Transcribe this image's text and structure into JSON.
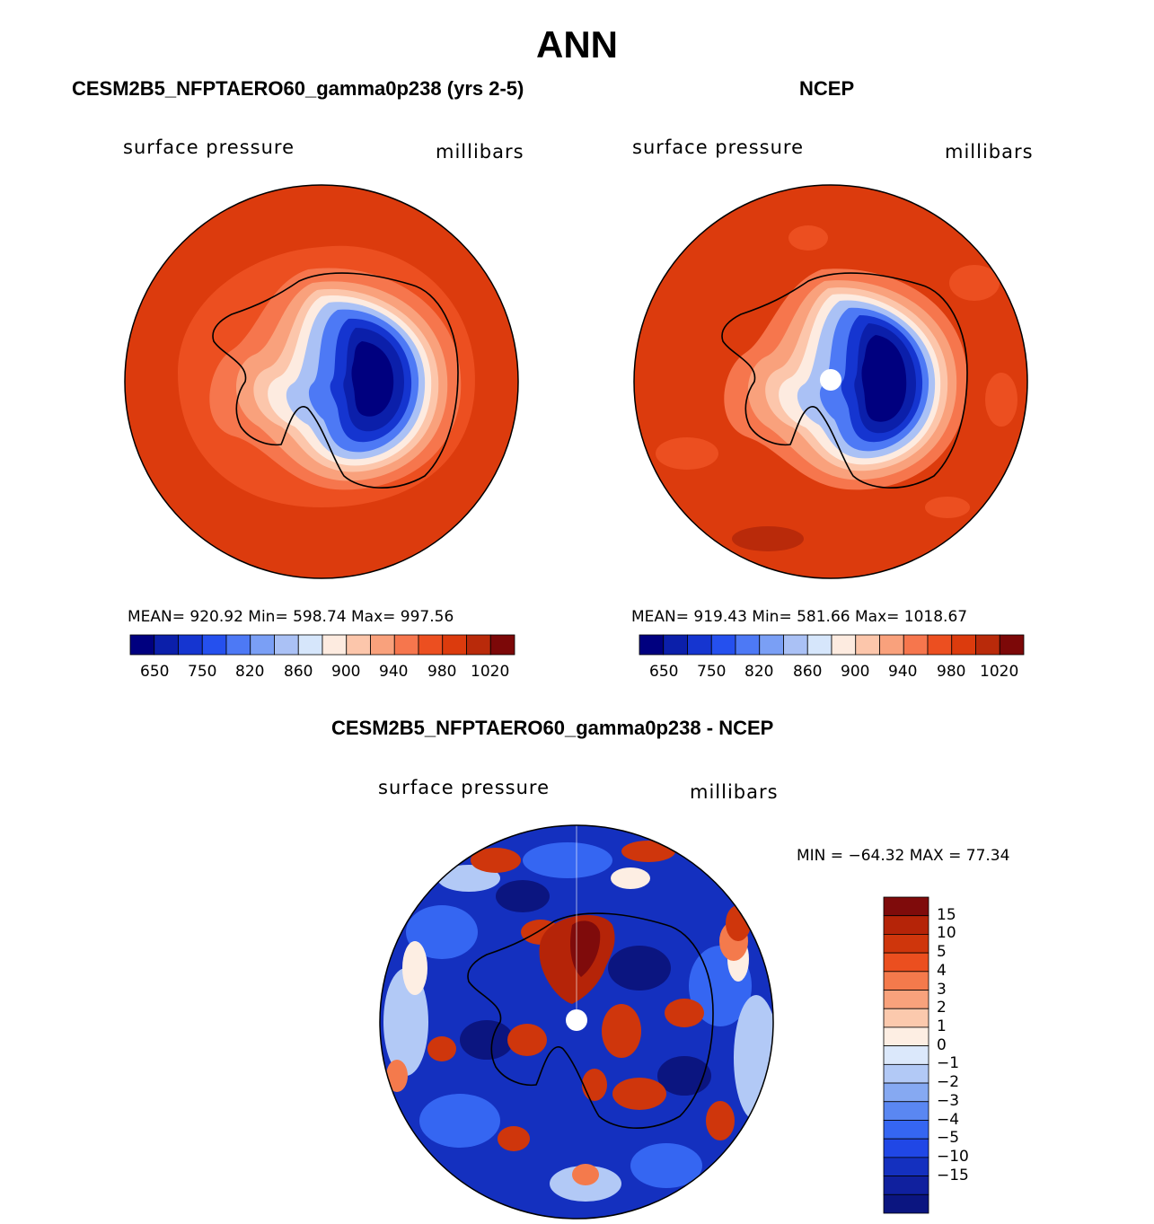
{
  "title": "ANN",
  "colors": {
    "seq": [
      "#00007f",
      "#0b1faa",
      "#1535d0",
      "#2550ee",
      "#4d79f5",
      "#7a9ff5",
      "#aac1f5",
      "#d6e6fb",
      "#fdebe0",
      "#fcc6ab",
      "#f9a17c",
      "#f6764d",
      "#ec4f20",
      "#dc3b0d",
      "#b92a0a",
      "#7c0808"
    ],
    "diff": [
      "#0b1580",
      "#10209e",
      "#1430bf",
      "#2047e6",
      "#3566f2",
      "#5a87f2",
      "#86a9f2",
      "#b2c9f6",
      "#dbe8fb",
      "#fdeee3",
      "#fbc9ad",
      "#f8a27c",
      "#f47a4c",
      "#eb4f1f",
      "#cf360c",
      "#b52408",
      "#7f0b0b"
    ]
  },
  "chart_data": [
    {
      "type": "heatmap",
      "title": "CESM2B5_NFPTAERO60_gamma0p238 (yrs 2-5)",
      "left_label": "surface pressure",
      "right_label": "millibars",
      "stats": "MEAN= 920.92   Min= 598.74   Max= 997.56",
      "colorbar_ticks": [
        "650",
        "750",
        "820",
        "860",
        "900",
        "940",
        "980",
        "1020"
      ],
      "mean": 920.92,
      "min": 598.74,
      "max": 997.56
    },
    {
      "type": "heatmap",
      "title": "NCEP",
      "left_label": "surface pressure",
      "right_label": "millibars",
      "stats": "MEAN= 919.43   Min= 581.66   Max= 1018.67",
      "colorbar_ticks": [
        "650",
        "750",
        "820",
        "860",
        "900",
        "940",
        "980",
        "1020"
      ],
      "mean": 919.43,
      "min": 581.66,
      "max": 1018.67
    },
    {
      "type": "heatmap",
      "title": "CESM2B5_NFPTAERO60_gamma0p238 - NCEP",
      "left_label": "surface pressure",
      "right_label": "millibars",
      "stats": "MIN = −64.32 MAX =   77.34",
      "colorbar_ticks": [
        "15",
        "10",
        "5",
        "4",
        "3",
        "2",
        "1",
        "0",
        "−1",
        "−2",
        "−3",
        "−4",
        "−5",
        "−10",
        "−15"
      ],
      "min": -64.32,
      "max": 77.34
    }
  ]
}
